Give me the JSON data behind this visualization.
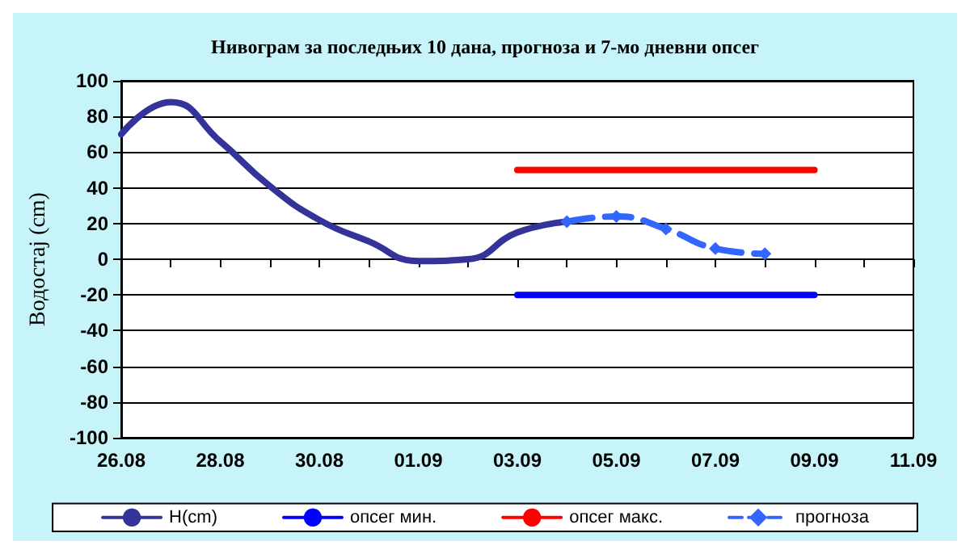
{
  "chart_data": {
    "type": "line",
    "title": "Нивограм за последњих 10 дана, прогноза и 7-мо дневни опсег",
    "ylabel": "Водостај (cm)",
    "xlim": [
      "--08-26",
      "--09-11"
    ],
    "xticks": [
      {
        "value": "--08-26",
        "label": "26.08"
      },
      {
        "value": "--08-27",
        "label": null
      },
      {
        "value": "--08-28",
        "label": "28.08"
      },
      {
        "value": "--08-29",
        "label": null
      },
      {
        "value": "--08-30",
        "label": "30.08"
      },
      {
        "value": "--08-31",
        "label": null
      },
      {
        "value": "--09-01",
        "label": "01.09"
      },
      {
        "value": "--09-02",
        "label": null
      },
      {
        "value": "--09-03",
        "label": "03.09"
      },
      {
        "value": "--09-04",
        "label": null
      },
      {
        "value": "--09-05",
        "label": "05.09"
      },
      {
        "value": "--09-06",
        "label": null
      },
      {
        "value": "--09-07",
        "label": "07.09"
      },
      {
        "value": "--09-08",
        "label": null
      },
      {
        "value": "--09-09",
        "label": "09.09"
      },
      {
        "value": "--09-10",
        "label": null
      },
      {
        "value": "--09-11",
        "label": "11.09"
      }
    ],
    "ylim": [
      -100,
      100
    ],
    "yticks": [
      -100,
      -80,
      -60,
      -40,
      -20,
      0,
      20,
      40,
      60,
      80,
      100
    ],
    "grid": "y",
    "legend": "bottom",
    "series": [
      {
        "name": "H(cm)",
        "color": "#333399",
        "marker": "none",
        "x": [
          "--08-26",
          "--08-27",
          "--08-28",
          "--08-29",
          "--08-30",
          "--08-31",
          "--09-01",
          "--09-02",
          "--09-03",
          "--09-04"
        ],
        "values": [
          70,
          88,
          66,
          41,
          22,
          10,
          -1,
          0,
          15,
          21
        ]
      },
      {
        "name": "опсег мин.",
        "color": "#0000ff",
        "marker": "none",
        "x": [
          "--09-03",
          "--09-09"
        ],
        "values": [
          -20,
          -20
        ]
      },
      {
        "name": "опсег макс.",
        "color": "#ff0000",
        "marker": "none",
        "x": [
          "--09-03",
          "--09-09"
        ],
        "values": [
          50,
          50
        ]
      },
      {
        "name": "прогноза",
        "color": "#3366ff",
        "marker": "diamond",
        "line_style": "dashed",
        "x": [
          "--09-04",
          "--09-05",
          "--09-06",
          "--09-07",
          "--09-08"
        ],
        "values": [
          21,
          24,
          17,
          6,
          3
        ]
      }
    ]
  }
}
